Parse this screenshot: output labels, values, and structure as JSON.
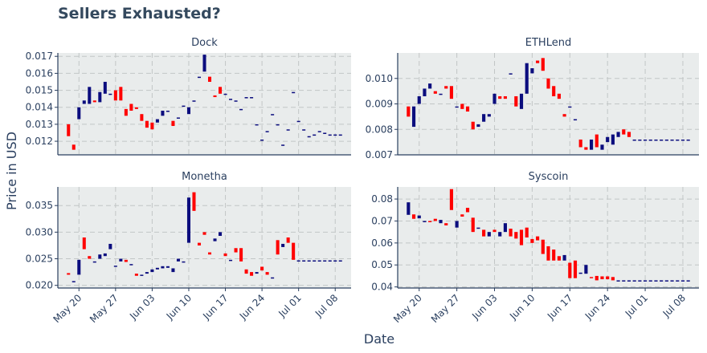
{
  "chart_data": {
    "type": "candlestick",
    "title": "Sellers Exhausted?",
    "xlabel": "Date",
    "ylabel": "Price in USD",
    "dates": [
      "May 18",
      "May 19",
      "May 20",
      "May 21",
      "May 22",
      "May 23",
      "May 24",
      "May 25",
      "May 26",
      "May 27",
      "May 28",
      "May 29",
      "May 30",
      "May 31",
      "Jun 01",
      "Jun 02",
      "Jun 03",
      "Jun 04",
      "Jun 05",
      "Jun 06",
      "Jun 07",
      "Jun 08",
      "Jun 09",
      "Jun 10",
      "Jun 11",
      "Jun 12",
      "Jun 13",
      "Jun 14",
      "Jun 15",
      "Jun 16",
      "Jun 17",
      "Jun 18",
      "Jun 19",
      "Jun 20",
      "Jun 21",
      "Jun 22",
      "Jun 23",
      "Jun 24",
      "Jun 25",
      "Jun 26",
      "Jun 27",
      "Jun 28",
      "Jun 29",
      "Jun 30",
      "Jul 01",
      "Jul 02",
      "Jul 03",
      "Jul 04",
      "Jul 05",
      "Jul 06",
      "Jul 07",
      "Jul 08",
      "Jul 09"
    ],
    "x_ticks": [
      "May 20",
      "May 27",
      "Jun 03",
      "Jun 10",
      "Jun 17",
      "Jun 24",
      "Jul 01",
      "Jul 08"
    ],
    "increasing_color": "#0b0d7e",
    "decreasing_color": "#ff0000",
    "panels": [
      {
        "name": "Dock",
        "ylim": [
          0.0112,
          0.0172
        ],
        "y_ticks": [
          0.012,
          0.013,
          0.014,
          0.015,
          0.016,
          0.017
        ],
        "y_tick_labels": [
          "0.012",
          "0.013",
          "0.014",
          "0.015",
          "0.016",
          "0.017"
        ],
        "open": [
          0.013,
          0.0118,
          0.0133,
          0.0142,
          0.0142,
          0.0144,
          0.0143,
          0.0148,
          0.0148,
          0.015,
          0.0152,
          0.0139,
          0.0142,
          0.014,
          0.0136,
          0.0132,
          0.0131,
          0.0131,
          0.0135,
          0.0138,
          0.0132,
          0.0134,
          0.0141,
          0.0136,
          0.0144,
          0.0158,
          0.0161,
          0.0158,
          0.0147,
          0.0152,
          0.0148,
          0.0145,
          0.0144,
          0.0139,
          0.0146,
          0.0146,
          0.013,
          0.0121,
          0.0126,
          0.0136,
          0.013,
          0.0118,
          0.0127,
          0.0149,
          0.0132,
          0.0127,
          0.0123,
          0.0124,
          0.0126,
          0.0125,
          0.0124,
          0.0124,
          0.0124
        ],
        "close": [
          0.0123,
          0.0115,
          0.014,
          0.0144,
          0.0152,
          0.0143,
          0.0149,
          0.0155,
          0.0148,
          0.0144,
          0.0144,
          0.0135,
          0.0138,
          0.0139,
          0.0132,
          0.0128,
          0.0127,
          0.0133,
          0.0138,
          0.0138,
          0.0129,
          0.0134,
          0.0141,
          0.014,
          0.0144,
          0.0158,
          0.0171,
          0.0155,
          0.0146,
          0.0148,
          0.0148,
          0.0145,
          0.0144,
          0.0139,
          0.0146,
          0.0146,
          0.013,
          0.0121,
          0.0126,
          0.0136,
          0.013,
          0.0118,
          0.0127,
          0.0149,
          0.0132,
          0.0127,
          0.0123,
          0.0124,
          0.0126,
          0.0125,
          0.0124,
          0.0124,
          0.0124
        ]
      },
      {
        "name": "ETHLend",
        "ylim": [
          0.007,
          0.011
        ],
        "y_ticks": [
          0.007,
          0.008,
          0.009,
          0.01
        ],
        "y_tick_labels": [
          "0.007",
          "0.008",
          "0.009",
          "0.010"
        ],
        "open": [
          0.0089,
          0.0081,
          0.009,
          0.0093,
          0.0096,
          0.0095,
          0.0094,
          0.0097,
          0.0097,
          0.0089,
          0.009,
          0.0089,
          0.0083,
          0.0081,
          0.0083,
          0.0085,
          0.009,
          0.0093,
          0.0093,
          0.0102,
          0.0093,
          0.0088,
          0.0094,
          0.0102,
          0.0107,
          0.0108,
          0.01,
          0.0097,
          0.0094,
          0.0086,
          0.0089,
          0.0084,
          0.0076,
          0.0073,
          0.0072,
          0.0078,
          0.0072,
          0.0075,
          0.0074,
          0.0077,
          0.008,
          0.0079,
          0.0076,
          0.0076,
          0.0076,
          0.0076,
          0.0076,
          0.0076,
          0.0076,
          0.0076,
          0.0076,
          0.0076,
          0.0076
        ],
        "close": [
          0.0085,
          0.0089,
          0.0093,
          0.0096,
          0.0098,
          0.0094,
          0.0094,
          0.0096,
          0.0092,
          0.0089,
          0.0088,
          0.0087,
          0.008,
          0.0082,
          0.0086,
          0.0086,
          0.0094,
          0.0092,
          0.0092,
          0.0102,
          0.0089,
          0.0094,
          0.0106,
          0.0104,
          0.0106,
          0.0103,
          0.0096,
          0.0093,
          0.0092,
          0.0085,
          0.0089,
          0.0084,
          0.0073,
          0.0072,
          0.0076,
          0.0073,
          0.0074,
          0.0077,
          0.0078,
          0.0079,
          0.0078,
          0.0077,
          0.0076,
          0.0076,
          0.0076,
          0.0076,
          0.0076,
          0.0076,
          0.0076,
          0.0076,
          0.0076,
          0.0076,
          0.0076
        ]
      },
      {
        "name": "Monetha",
        "ylim": [
          0.0195,
          0.0385
        ],
        "y_ticks": [
          0.02,
          0.025,
          0.03,
          0.035
        ],
        "y_tick_labels": [
          "0.020",
          "0.025",
          "0.030",
          "0.035"
        ],
        "open": [
          0.0223,
          0.0208,
          0.022,
          0.029,
          0.0255,
          0.0245,
          0.025,
          0.0255,
          0.0268,
          0.0237,
          0.0245,
          0.0248,
          0.024,
          0.0222,
          0.0218,
          0.0222,
          0.0225,
          0.023,
          0.0232,
          0.0233,
          0.0225,
          0.0245,
          0.0245,
          0.028,
          0.0375,
          0.028,
          0.03,
          0.0262,
          0.0283,
          0.0293,
          0.026,
          0.0248,
          0.027,
          0.027,
          0.023,
          0.0225,
          0.0222,
          0.0235,
          0.0225,
          0.0215,
          0.0285,
          0.0272,
          0.029,
          0.028,
          0.0247,
          0.0247,
          0.0247,
          0.0247,
          0.0247,
          0.0247,
          0.0247,
          0.0247,
          0.0247
        ],
        "close": [
          0.022,
          0.0208,
          0.0248,
          0.0268,
          0.025,
          0.0245,
          0.0258,
          0.026,
          0.0278,
          0.0237,
          0.025,
          0.0244,
          0.024,
          0.0218,
          0.022,
          0.0225,
          0.023,
          0.0233,
          0.0236,
          0.0236,
          0.0232,
          0.025,
          0.0245,
          0.0365,
          0.034,
          0.0275,
          0.0295,
          0.0258,
          0.0288,
          0.03,
          0.0255,
          0.0248,
          0.0262,
          0.0245,
          0.0222,
          0.0218,
          0.0225,
          0.0228,
          0.022,
          0.0215,
          0.0258,
          0.0278,
          0.028,
          0.0248,
          0.0247,
          0.0247,
          0.0247,
          0.0247,
          0.0247,
          0.0247,
          0.0247,
          0.0247,
          0.0247
        ]
      },
      {
        "name": "Syscoin",
        "ylim": [
          0.0395,
          0.0855
        ],
        "y_ticks": [
          0.04,
          0.05,
          0.06,
          0.07,
          0.08
        ],
        "y_tick_labels": [
          "0.04",
          "0.05",
          "0.06",
          "0.07",
          "0.08"
        ],
        "open": [
          0.0728,
          0.073,
          0.0712,
          0.0695,
          0.07,
          0.071,
          0.069,
          0.069,
          0.0845,
          0.067,
          0.073,
          0.076,
          0.0715,
          0.0665,
          0.066,
          0.063,
          0.066,
          0.063,
          0.065,
          0.0665,
          0.065,
          0.066,
          0.067,
          0.0618,
          0.063,
          0.0615,
          0.0585,
          0.057,
          0.054,
          0.052,
          0.051,
          0.052,
          0.046,
          0.046,
          0.0445,
          0.045,
          0.0448,
          0.0448,
          0.0445,
          0.043,
          0.043,
          0.043,
          0.043,
          0.043,
          0.043,
          0.043,
          0.043,
          0.043,
          0.043,
          0.043,
          0.043,
          0.043,
          0.043
        ],
        "close": [
          0.0785,
          0.071,
          0.0725,
          0.07,
          0.0695,
          0.07,
          0.0705,
          0.068,
          0.075,
          0.07,
          0.072,
          0.074,
          0.065,
          0.067,
          0.063,
          0.065,
          0.065,
          0.065,
          0.069,
          0.063,
          0.062,
          0.059,
          0.0625,
          0.06,
          0.0612,
          0.055,
          0.052,
          0.052,
          0.052,
          0.0545,
          0.044,
          0.044,
          0.0465,
          0.05,
          0.044,
          0.043,
          0.0435,
          0.0435,
          0.043,
          0.043,
          0.043,
          0.043,
          0.043,
          0.043,
          0.043,
          0.043,
          0.043,
          0.043,
          0.043,
          0.043,
          0.043,
          0.043,
          0.043
        ]
      }
    ]
  }
}
